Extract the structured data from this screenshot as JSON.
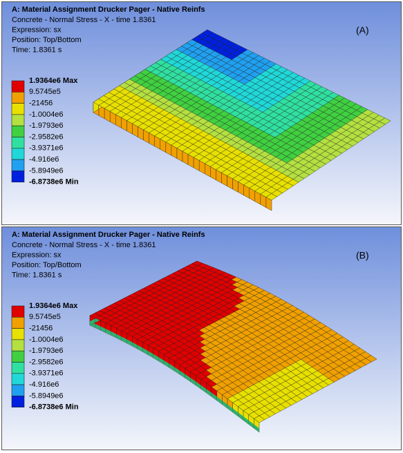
{
  "panels": [
    {
      "title": "A: Material Assignment Drucker Pager - Native Reinfs",
      "lines": [
        "Concrete - Normal Stress - X - time 1.8361",
        "Expression: sx",
        "Position: Top/Bottom",
        "Time: 1.8361 s"
      ],
      "tag": "(A)",
      "legend": [
        "1.9364e6 Max",
        "9.5745e5",
        "-21456",
        "-1.0004e6",
        "-1.9793e6",
        "-2.9582e6",
        "-3.9371e6",
        "-4.916e6",
        "-5.8949e6",
        "-6.8738e6 Min"
      ]
    },
    {
      "title": "A: Material Assignment Drucker Pager - Native Reinfs",
      "lines": [
        "Concrete - Normal Stress - X - time 1.8361",
        "Expression: sx",
        "Position: Top/Bottom",
        "Time: 1.8361 s"
      ],
      "tag": "(B)",
      "legend": [
        "1.9364e6 Max",
        "9.5745e5",
        "-21456",
        "-1.0004e6",
        "-1.9793e6",
        "-2.9582e6",
        "-3.9371e6",
        "-4.916e6",
        "-5.8949e6",
        "-6.8738e6 Min"
      ]
    }
  ]
}
